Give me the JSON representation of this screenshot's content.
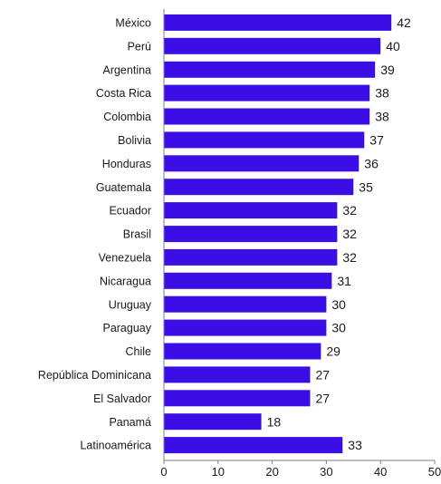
{
  "chart_data": {
    "type": "bar",
    "orientation": "horizontal",
    "categories": [
      "México",
      "Perú",
      "Argentina",
      "Costa Rica",
      "Colombia",
      "Bolivia",
      "Honduras",
      "Guatemala",
      "Ecuador",
      "Brasil",
      "Venezuela",
      "Nicaragua",
      "Uruguay",
      "Paraguay",
      "Chile",
      "República Dominicana",
      "El Salvador",
      "Panamá",
      "Latinoamérica"
    ],
    "values": [
      42,
      40,
      39,
      38,
      38,
      37,
      36,
      35,
      32,
      32,
      32,
      31,
      30,
      30,
      29,
      27,
      27,
      18,
      33
    ],
    "data_labels": [
      "42",
      "40",
      "39",
      "38",
      "38",
      "37",
      "36",
      "35",
      "32",
      "32",
      "32",
      "31",
      "30",
      "30",
      "29",
      "27",
      "27",
      "18",
      "33"
    ],
    "title": "",
    "xlabel": "",
    "ylabel": "",
    "xlim": [
      0,
      50
    ],
    "x_ticks": [
      "0",
      "10",
      "20",
      "30",
      "40",
      "50"
    ],
    "grid": false,
    "legend": "none",
    "bar_color": "#3b0ee6",
    "axis_color": "#7f7f7f",
    "text_color": "#1a1a1a"
  }
}
